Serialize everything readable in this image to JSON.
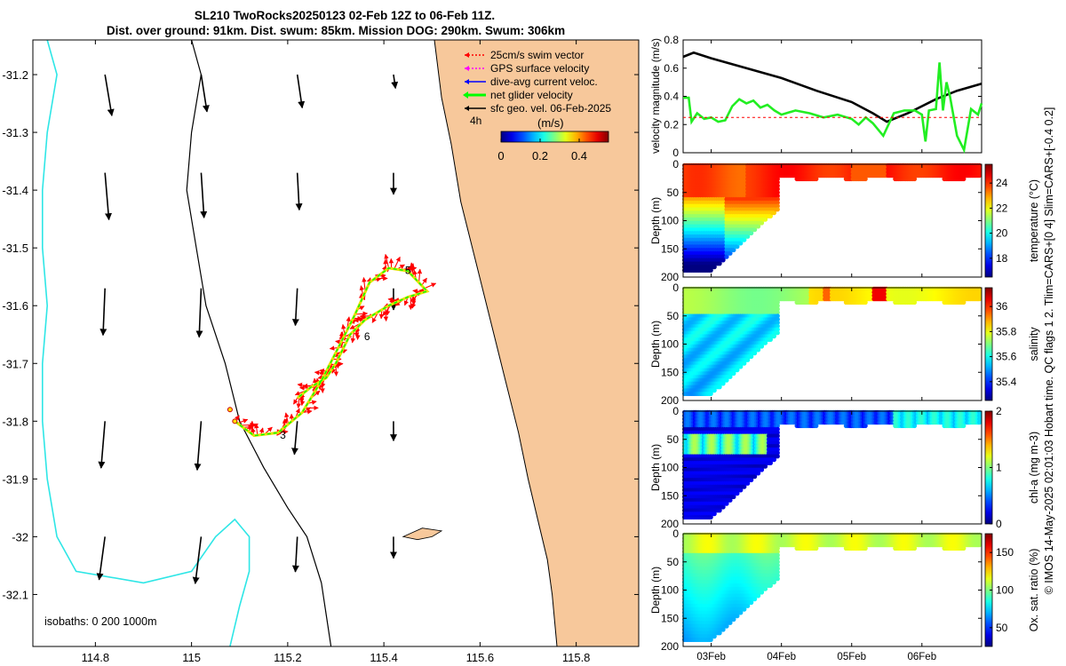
{
  "header": {
    "title_line1": "SL210 TwoRocks20250123 02-Feb 12Z to 06-Feb 11Z.",
    "title_line2": "Dist. over ground: 91km. Dist. swum: 85km. Mission DOG: 290km. Swum: 306km"
  },
  "side_note": "© IMOS 14-May-2025 02:01:03 Hobart time. QC flags 1  2. Tlim=CARS+[0 4] Slim=CARS+[-0.4 0.2]",
  "colors": {
    "land": "#f7c89b",
    "isobath_200": "#000000",
    "isobath_1000": "#2ee6e6",
    "swim_vector": "#ff0000",
    "gps_surface": "#ff00ff",
    "dive_avg_current": "#0000ff",
    "net_glider": "#00ff00",
    "geo_vel": "#000000",
    "mag_black": "#000000",
    "mag_green": "#22ee22",
    "mag_red_dashed": "#ff0000"
  },
  "chart_data": [
    {
      "type": "map",
      "name": "glider_track_map",
      "xlim": [
        114.67,
        115.93
      ],
      "ylim": [
        -32.19,
        -31.14
      ],
      "x_ticks": [
        114.8,
        115,
        115.2,
        115.4,
        115.6,
        115.8
      ],
      "x_tick_labels": [
        "114.8",
        "115",
        "115.2",
        "115.4",
        "115.6",
        "115.8"
      ],
      "y_ticks": [
        -31.2,
        -31.3,
        -31.4,
        -31.5,
        -31.6,
        -31.7,
        -31.8,
        -31.9,
        -32,
        -32.1
      ],
      "y_tick_labels": [
        "-31.2",
        "-31.3",
        "-31.4",
        "-31.5",
        "-31.6",
        "-31.7",
        "-31.8",
        "-31.9",
        "-32",
        "-32.1"
      ],
      "legend": [
        {
          "label": "25cm/s swim vector",
          "color_key": "swim_vector"
        },
        {
          "label": "GPS surface velocity",
          "color_key": "gps_surface"
        },
        {
          "label": "dive-avg current veloc.",
          "color_key": "dive_avg_current"
        },
        {
          "label": "net glider velocity",
          "color_key": "net_glider"
        },
        {
          "label": "sfc geo. vel. 06-Feb-2025",
          "color_key": "geo_vel"
        }
      ],
      "legend_4h_label": "4h",
      "colorbar": {
        "label": "(m/s)",
        "range": [
          0,
          0.55
        ],
        "ticks": [
          0,
          0.2,
          0.4
        ],
        "tick_labels": [
          "0",
          "0.2",
          "0.4"
        ],
        "colormap": "jet"
      },
      "isobaths_label": "isobaths: 0   200  1000m",
      "day_markers": [
        {
          "label": "3",
          "lon": 115.19,
          "lat": -31.83
        },
        {
          "label": "5",
          "lon": 115.45,
          "lat": -31.545
        },
        {
          "label": "6",
          "lon": 115.365,
          "lat": -31.66
        }
      ],
      "track": [
        [
          115.09,
          -31.8
        ],
        [
          115.13,
          -31.825
        ],
        [
          115.18,
          -31.82
        ],
        [
          115.23,
          -31.785
        ],
        [
          115.27,
          -31.73
        ],
        [
          115.31,
          -31.665
        ],
        [
          115.34,
          -31.615
        ],
        [
          115.37,
          -31.56
        ],
        [
          115.41,
          -31.535
        ],
        [
          115.45,
          -31.54
        ],
        [
          115.49,
          -31.575
        ],
        [
          115.45,
          -31.585
        ],
        [
          115.41,
          -31.6
        ],
        [
          115.36,
          -31.625
        ],
        [
          115.33,
          -31.65
        ],
        [
          115.3,
          -31.7
        ],
        [
          115.28,
          -31.725
        ],
        [
          115.25,
          -31.74
        ],
        [
          115.22,
          -31.76
        ]
      ],
      "geo_vectors": [
        {
          "lon": 114.82,
          "lat": -31.2,
          "u": 0.035,
          "v": -0.21
        },
        {
          "lon": 115.02,
          "lat": -31.2,
          "u": 0.03,
          "v": -0.19
        },
        {
          "lon": 115.22,
          "lat": -31.2,
          "u": 0.025,
          "v": -0.17
        },
        {
          "lon": 115.42,
          "lat": -31.2,
          "u": 0.01,
          "v": -0.07
        },
        {
          "lon": 114.82,
          "lat": -31.37,
          "u": 0.02,
          "v": -0.24
        },
        {
          "lon": 115.02,
          "lat": -31.37,
          "u": 0.015,
          "v": -0.23
        },
        {
          "lon": 115.22,
          "lat": -31.37,
          "u": 0.01,
          "v": -0.19
        },
        {
          "lon": 115.42,
          "lat": -31.37,
          "u": 0.0,
          "v": -0.11
        },
        {
          "lon": 114.82,
          "lat": -31.57,
          "u": -0.01,
          "v": -0.24
        },
        {
          "lon": 115.02,
          "lat": -31.57,
          "u": -0.01,
          "v": -0.25
        },
        {
          "lon": 115.22,
          "lat": -31.57,
          "u": -0.01,
          "v": -0.19
        },
        {
          "lon": 115.42,
          "lat": -31.57,
          "u": 0.0,
          "v": -0.11
        },
        {
          "lon": 114.82,
          "lat": -31.8,
          "u": -0.02,
          "v": -0.24
        },
        {
          "lon": 115.02,
          "lat": -31.8,
          "u": -0.02,
          "v": -0.25
        },
        {
          "lon": 115.22,
          "lat": -31.8,
          "u": -0.015,
          "v": -0.17
        },
        {
          "lon": 115.42,
          "lat": -31.8,
          "u": 0.0,
          "v": -0.1
        },
        {
          "lon": 114.82,
          "lat": -32.0,
          "u": -0.03,
          "v": -0.22
        },
        {
          "lon": 115.02,
          "lat": -32.0,
          "u": -0.03,
          "v": -0.24
        },
        {
          "lon": 115.22,
          "lat": -32.0,
          "u": -0.01,
          "v": -0.18
        },
        {
          "lon": 115.42,
          "lat": -32.0,
          "u": 0.0,
          "v": -0.11
        }
      ],
      "coastline": [
        [
          115.505,
          -31.14
        ],
        [
          115.52,
          -31.24
        ],
        [
          115.54,
          -31.32
        ],
        [
          115.56,
          -31.42
        ],
        [
          115.59,
          -31.52
        ],
        [
          115.62,
          -31.62
        ],
        [
          115.65,
          -31.72
        ],
        [
          115.68,
          -31.82
        ],
        [
          115.7,
          -31.9
        ],
        [
          115.72,
          -31.97
        ],
        [
          115.74,
          -32.04
        ],
        [
          115.75,
          -32.1
        ],
        [
          115.76,
          -32.19
        ]
      ],
      "island": [
        [
          115.44,
          -32.0
        ],
        [
          115.48,
          -31.985
        ],
        [
          115.52,
          -31.99
        ],
        [
          115.5,
          -32.0
        ],
        [
          115.47,
          -32.005
        ],
        [
          115.44,
          -32.0
        ]
      ],
      "isobath_200m": [
        [
          115.0,
          -31.14
        ],
        [
          115.02,
          -31.2
        ],
        [
          115.0,
          -31.3
        ],
        [
          114.99,
          -31.4
        ],
        [
          115.01,
          -31.5
        ],
        [
          115.03,
          -31.6
        ],
        [
          115.07,
          -31.7
        ],
        [
          115.1,
          -31.8
        ],
        [
          115.15,
          -31.88
        ],
        [
          115.2,
          -31.95
        ],
        [
          115.24,
          -32.0
        ],
        [
          115.27,
          -32.08
        ],
        [
          115.29,
          -32.19
        ]
      ],
      "isobath_1000m": [
        [
          114.7,
          -31.14
        ],
        [
          114.72,
          -31.2
        ],
        [
          114.7,
          -31.3
        ],
        [
          114.69,
          -31.4
        ],
        [
          114.69,
          -31.5
        ],
        [
          114.7,
          -31.6
        ],
        [
          114.69,
          -31.7
        ],
        [
          114.69,
          -31.8
        ],
        [
          114.7,
          -31.9
        ],
        [
          114.72,
          -32.0
        ],
        [
          114.76,
          -32.06
        ],
        [
          114.9,
          -32.08
        ],
        [
          115.0,
          -32.06
        ],
        [
          115.05,
          -32.0
        ],
        [
          115.09,
          -31.97
        ],
        [
          115.12,
          -32.0
        ],
        [
          115.12,
          -32.06
        ],
        [
          115.1,
          -32.12
        ],
        [
          115.08,
          -32.19
        ]
      ]
    },
    {
      "type": "line",
      "name": "velocity_magnitude",
      "ylabel": "velocity magnitude (m/s)",
      "xlim": [
        2.6,
        6.85
      ],
      "ylim": [
        0,
        0.8
      ],
      "y_ticks": [
        0,
        0.2,
        0.4,
        0.6,
        0.8
      ],
      "y_tick_labels": [
        "0",
        "0.2",
        "0.4",
        "0.6",
        "0.8"
      ],
      "series": [
        {
          "name": "sfc geo. vel. magnitude",
          "color_key": "mag_black",
          "x": [
            2.6,
            2.75,
            3.0,
            3.5,
            4.0,
            4.5,
            5.0,
            5.3,
            5.5,
            5.8,
            6.2,
            6.5,
            6.85
          ],
          "y": [
            0.68,
            0.71,
            0.67,
            0.6,
            0.53,
            0.44,
            0.36,
            0.28,
            0.22,
            0.28,
            0.38,
            0.44,
            0.49
          ]
        },
        {
          "name": "net glider velocity magnitude",
          "color_key": "mag_green",
          "x": [
            2.6,
            2.68,
            2.72,
            2.8,
            2.9,
            3.0,
            3.1,
            3.2,
            3.3,
            3.4,
            3.5,
            3.6,
            3.7,
            3.8,
            3.9,
            4.0,
            4.2,
            4.4,
            4.6,
            4.8,
            5.0,
            5.1,
            5.2,
            5.3,
            5.45,
            5.6,
            5.75,
            5.9,
            6.0,
            6.05,
            6.1,
            6.2,
            6.25,
            6.3,
            6.35,
            6.4,
            6.5,
            6.6,
            6.7,
            6.8,
            6.85
          ],
          "y": [
            0.39,
            0.39,
            0.22,
            0.28,
            0.24,
            0.25,
            0.22,
            0.23,
            0.33,
            0.38,
            0.35,
            0.37,
            0.32,
            0.34,
            0.3,
            0.27,
            0.3,
            0.28,
            0.25,
            0.27,
            0.24,
            0.2,
            0.25,
            0.21,
            0.12,
            0.28,
            0.3,
            0.3,
            0.27,
            0.08,
            0.3,
            0.31,
            0.64,
            0.3,
            0.5,
            0.4,
            0.12,
            0.02,
            0.31,
            0.27,
            0.35
          ]
        },
        {
          "name": "swim speed reference",
          "color_key": "mag_red_dashed",
          "x": [
            2.6,
            6.85
          ],
          "y": [
            0.25,
            0.25
          ]
        }
      ]
    },
    {
      "type": "scatter_section",
      "name": "temperature",
      "ylabel": "Depth (m)",
      "colorbar_label": "temperature (°C)",
      "clim": [
        16.5,
        25.5
      ],
      "colorbar_ticks": [
        18,
        20,
        22,
        24
      ],
      "colorbar_tick_labels": [
        "18",
        "20",
        "22",
        "24"
      ],
      "y_ticks": [
        0,
        50,
        100,
        150,
        200
      ],
      "y_tick_labels": [
        "0",
        "50",
        "100",
        "150",
        "200"
      ],
      "surface_value": 24.3,
      "deep_value": 18.0
    },
    {
      "type": "scatter_section",
      "name": "salinity",
      "ylabel": "Depth (m)",
      "colorbar_label": "salinity",
      "clim": [
        35.25,
        36.15
      ],
      "colorbar_ticks": [
        35.4,
        35.6,
        35.8,
        36
      ],
      "colorbar_tick_labels": [
        "35.4",
        "35.6",
        "35.8",
        "36"
      ],
      "y_ticks": [
        0,
        50,
        100,
        150,
        200
      ],
      "y_tick_labels": [
        "0",
        "50",
        "100",
        "150",
        "200"
      ],
      "surface_value": 35.85,
      "deep_value": 35.72
    },
    {
      "type": "scatter_section",
      "name": "chl-a",
      "ylabel": "Depth (m)",
      "colorbar_label": "chl-a (mg m-3)",
      "clim": [
        0,
        2
      ],
      "colorbar_ticks": [
        0,
        1,
        2
      ],
      "colorbar_tick_labels": [
        "0",
        "1",
        "2"
      ],
      "y_ticks": [
        0,
        50,
        100,
        150,
        200
      ],
      "y_tick_labels": [
        "0",
        "50",
        "100",
        "150",
        "200"
      ],
      "surface_value": 0.3,
      "deep_value": 0.1
    },
    {
      "type": "scatter_section",
      "name": "oxygen_saturation",
      "ylabel": "Depth (m)",
      "colorbar_label": "Ox. sat. ratio (%)",
      "clim": [
        25,
        175
      ],
      "colorbar_ticks": [
        50,
        100,
        150
      ],
      "colorbar_tick_labels": [
        "50",
        "100",
        "150"
      ],
      "y_ticks": [
        0,
        50,
        100,
        150,
        200
      ],
      "y_tick_labels": [
        "0",
        "50",
        "100",
        "150",
        "200"
      ],
      "surface_value": 105,
      "deep_value": 95,
      "x_tick_labels": [
        "03Feb",
        "04Feb",
        "05Feb",
        "06Feb"
      ],
      "x_ticks": [
        3,
        4,
        5,
        6
      ]
    }
  ]
}
